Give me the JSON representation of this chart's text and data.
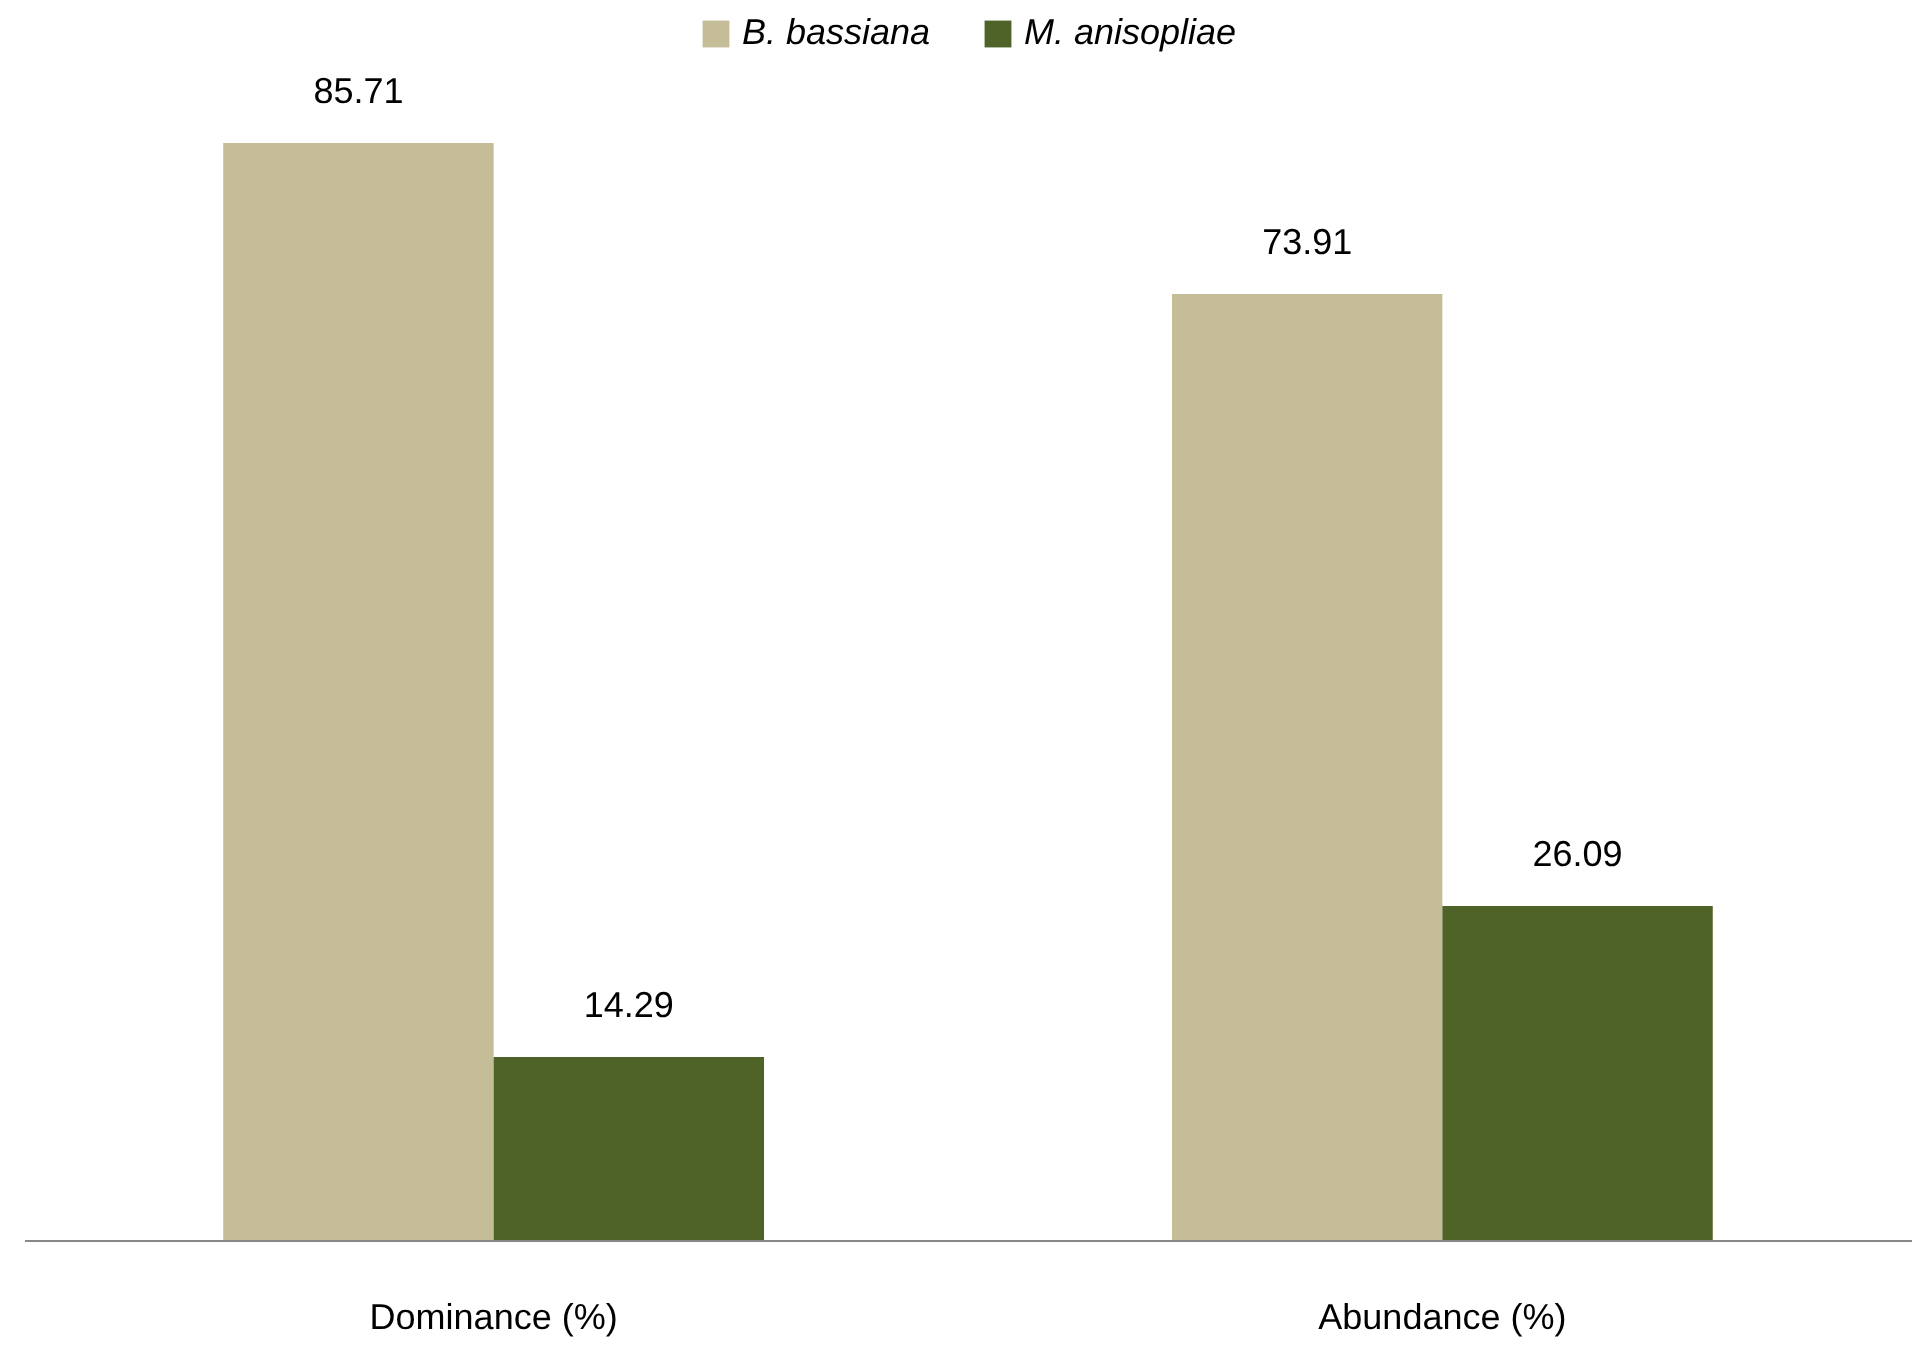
{
  "chart_data": {
    "type": "bar",
    "categories": [
      "Dominance (%)",
      "Abundance (%)"
    ],
    "series": [
      {
        "name": "B. bassiana",
        "color": "#c4bd97",
        "values": [
          85.71,
          73.91
        ]
      },
      {
        "name": "M. anisopliae",
        "color": "#4f6228",
        "values": [
          14.29,
          26.09
        ]
      }
    ],
    "data_labels": true,
    "legend": "top"
  }
}
